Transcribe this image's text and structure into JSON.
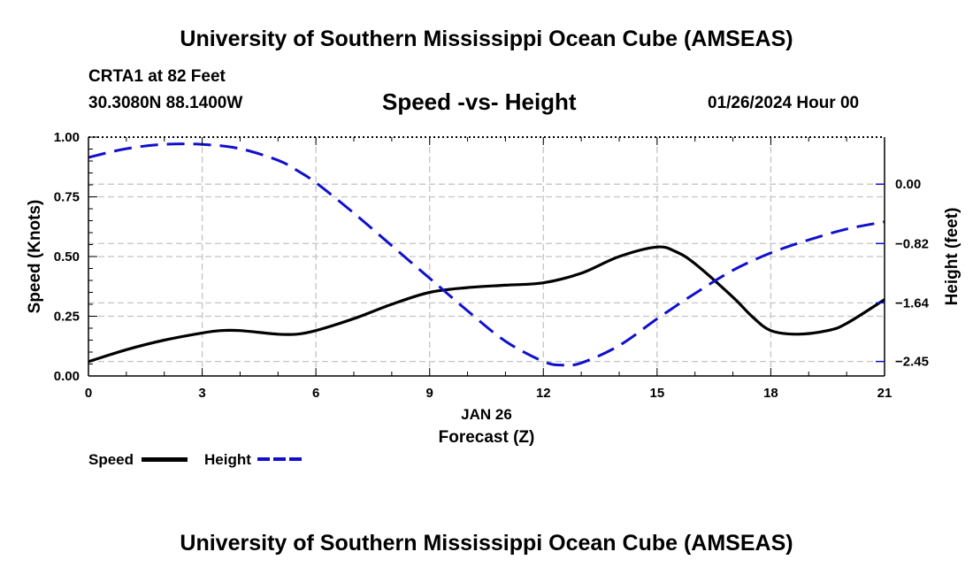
{
  "header": {
    "title": "University of Southern Mississippi Ocean Cube (AMSEAS)",
    "station": "CRTA1 at 82 Feet",
    "coords": "30.3080N  88.1400W",
    "subtitle": "Speed -vs- Height",
    "datetime": "01/26/2024 Hour 00"
  },
  "footer": {
    "title": "University of Southern Mississippi Ocean Cube (AMSEAS)"
  },
  "legend": {
    "speed_label": "Speed",
    "height_label": "Height"
  },
  "chart_data": {
    "type": "line",
    "title": "Speed -vs- Height",
    "xlabel": "Forecast (Z)",
    "xlabel_date": "JAN 26",
    "ylabel_left": "Speed (Knots)",
    "ylabel_right": "Height (feet)",
    "xlim": [
      0,
      21
    ],
    "ylim_left": [
      0,
      1
    ],
    "ylim_right": [
      -2.65,
      0.65
    ],
    "x_ticks": [
      0,
      3,
      6,
      9,
      12,
      15,
      18,
      21
    ],
    "x_tick_labels": [
      "0",
      "3",
      "6",
      "9",
      "12",
      "15",
      "18",
      "21"
    ],
    "y_left_ticks": [
      0,
      0.25,
      0.5,
      0.75,
      1.0
    ],
    "y_left_tick_labels": [
      "0.00",
      "0.25",
      "0.50",
      "0.75",
      "1.00"
    ],
    "y_right_ticks": [
      0.0,
      -0.82,
      -1.64,
      -2.45
    ],
    "y_right_tick_labels": [
      "0.00",
      "−0.82",
      "−1.64",
      "−2.45"
    ],
    "grid": true,
    "series": [
      {
        "name": "Speed",
        "axis": "left",
        "color": "#000000",
        "dash": "solid",
        "x": [
          0,
          1,
          2,
          3,
          3.5,
          4,
          5,
          5.5,
          6,
          7,
          8,
          9,
          10,
          11,
          12,
          13,
          14,
          15,
          15.5,
          16,
          17,
          17.5,
          18,
          18.7,
          19.5,
          20,
          21
        ],
        "y": [
          0.06,
          0.11,
          0.15,
          0.18,
          0.19,
          0.19,
          0.175,
          0.175,
          0.19,
          0.24,
          0.3,
          0.35,
          0.37,
          0.38,
          0.39,
          0.43,
          0.5,
          0.54,
          0.52,
          0.47,
          0.33,
          0.25,
          0.19,
          0.175,
          0.19,
          0.22,
          0.32
        ]
      },
      {
        "name": "Height",
        "axis": "right",
        "color": "#1010cc",
        "dash": "dashed",
        "x": [
          0,
          1,
          2,
          3,
          4,
          5,
          5.5,
          6,
          7,
          8,
          9,
          10,
          11,
          12,
          12.5,
          13,
          14,
          15,
          16,
          17,
          18,
          19,
          20,
          21
        ],
        "y": [
          0.37,
          0.49,
          0.55,
          0.55,
          0.49,
          0.33,
          0.19,
          0.02,
          -0.4,
          -0.85,
          -1.3,
          -1.75,
          -2.17,
          -2.45,
          -2.5,
          -2.47,
          -2.23,
          -1.86,
          -1.51,
          -1.19,
          -0.95,
          -0.77,
          -0.62,
          -0.52
        ]
      }
    ]
  }
}
